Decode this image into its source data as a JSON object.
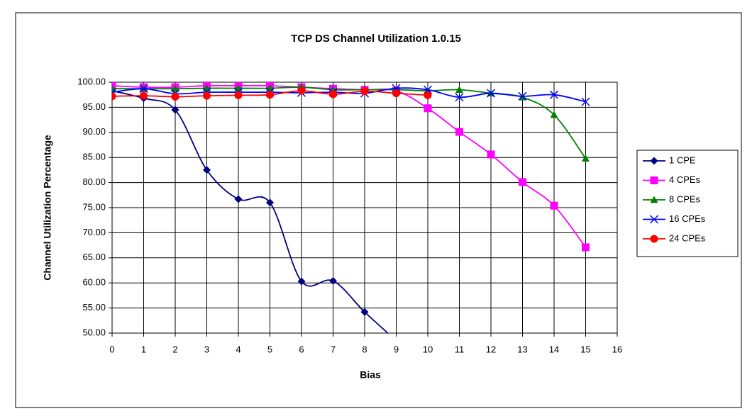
{
  "chart_data": {
    "type": "line",
    "title": "TCP DS Channel Utilization 1.0.15",
    "x_label": "Bias",
    "y_label": "Channel Utilization Percentage",
    "x": [
      0,
      1,
      2,
      3,
      4,
      5,
      6,
      7,
      8,
      9,
      10,
      11,
      12,
      13,
      14,
      15
    ],
    "xlim": [
      0,
      16
    ],
    "xticks": [
      0,
      1,
      2,
      3,
      4,
      5,
      6,
      7,
      8,
      9,
      10,
      11,
      12,
      13,
      14,
      15,
      16
    ],
    "ylim": [
      50,
      100
    ],
    "yticks": [
      {
        "value": 50,
        "label": "50.00"
      },
      {
        "value": 55,
        "label": "55.00"
      },
      {
        "value": 60,
        "label": "60.00"
      },
      {
        "value": 65,
        "label": "65.00"
      },
      {
        "value": 70,
        "label": "70.00"
      },
      {
        "value": 75,
        "label": "75.00"
      },
      {
        "value": 80,
        "label": "80.00"
      },
      {
        "value": 85,
        "label": "85.00"
      },
      {
        "value": 90,
        "label": "90.00"
      },
      {
        "value": 95,
        "label": "95.00"
      },
      {
        "value": 100,
        "label": "100.00"
      }
    ],
    "grid": true,
    "legend": "right",
    "series": [
      {
        "name": "1 CPE",
        "color": "#000080",
        "marker": "diamond",
        "values": [
          98.3,
          96.8,
          94.5,
          82.5,
          76.7,
          76.0,
          60.3,
          60.4,
          54.2,
          48.5,
          null,
          null,
          null,
          null,
          null,
          null
        ]
      },
      {
        "name": "4 CPEs",
        "color": "#ff00ff",
        "marker": "square",
        "values": [
          99.3,
          99.0,
          99.0,
          99.3,
          99.3,
          99.3,
          99.0,
          98.7,
          98.5,
          98.3,
          94.8,
          90.1,
          85.6,
          80.1,
          75.4,
          67.1
        ]
      },
      {
        "name": "8 CPEs",
        "color": "#008000",
        "marker": "triangle",
        "values": [
          98.7,
          98.7,
          98.7,
          98.8,
          98.8,
          98.8,
          99.0,
          98.5,
          98.5,
          98.5,
          98.3,
          98.5,
          97.8,
          97.0,
          93.5,
          84.8
        ]
      },
      {
        "name": "16 CPEs",
        "color": "#0000ff",
        "marker": "x",
        "values": [
          98.0,
          98.7,
          97.7,
          98.0,
          98.0,
          98.0,
          97.9,
          98.0,
          97.8,
          98.8,
          98.5,
          97.0,
          97.8,
          97.2,
          97.5,
          96.1
        ]
      },
      {
        "name": "24 CPEs",
        "color": "#ff0000",
        "marker": "circle",
        "values": [
          97.2,
          97.3,
          97.1,
          97.3,
          97.4,
          97.5,
          98.3,
          97.6,
          98.2,
          97.8,
          97.4,
          null,
          null,
          null,
          null,
          null
        ]
      }
    ]
  }
}
